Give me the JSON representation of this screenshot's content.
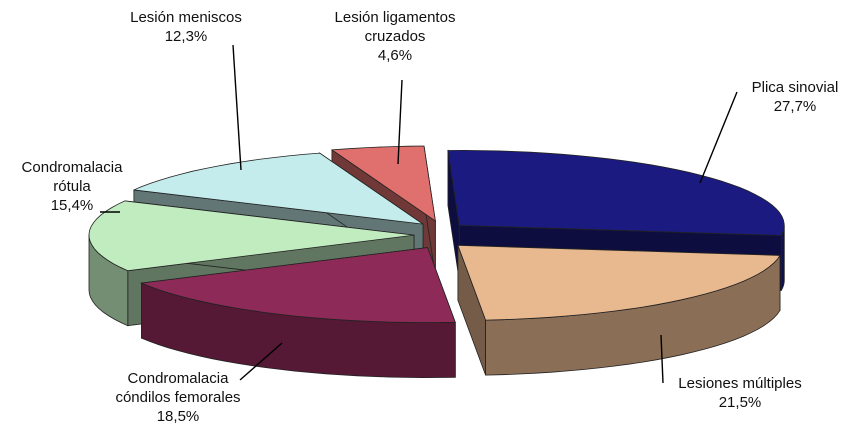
{
  "chart_data": {
    "type": "pie",
    "style": "3d-exploded",
    "slices": [
      {
        "label_lines": [
          "Plica sinovial"
        ],
        "value_label": "27,7%",
        "value": 27.7,
        "color": "#1a1a80"
      },
      {
        "label_lines": [
          "Lesiones múltiples"
        ],
        "value_label": "21,5%",
        "value": 21.5,
        "color": "#e8b88f"
      },
      {
        "label_lines": [
          "Condromalacia",
          "cóndilos femorales"
        ],
        "value_label": "18,5%",
        "value": 18.5,
        "color": "#8e2a58"
      },
      {
        "label_lines": [
          "Condromalacia",
          "rótula"
        ],
        "value_label": "15,4%",
        "value": 15.4,
        "color": "#c0ecc0"
      },
      {
        "label_lines": [
          "Lesión meniscos"
        ],
        "value_label": "12,3%",
        "value": 12.3,
        "color": "#c4ecec"
      },
      {
        "label_lines": [
          "Lesión ligamentos",
          "cruzados"
        ],
        "value_label": "4,6%",
        "value": 4.6,
        "color": "#e0706e"
      }
    ]
  }
}
